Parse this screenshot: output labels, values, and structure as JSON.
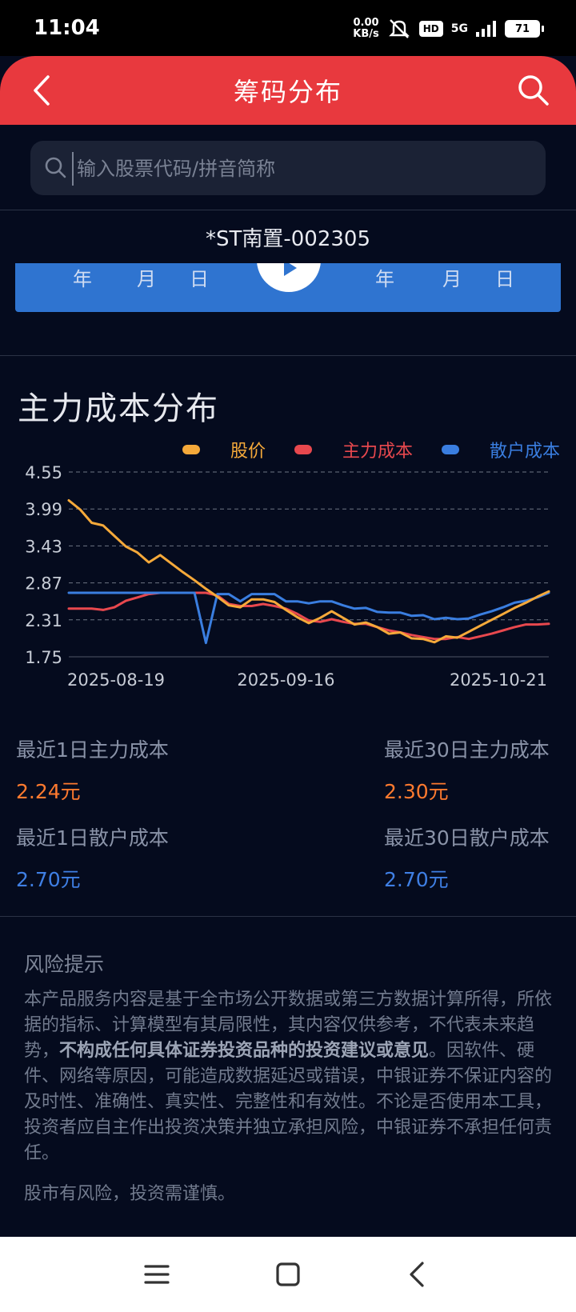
{
  "status": {
    "time": "11:04",
    "speed_value": "0.00",
    "speed_unit": "KB/s",
    "hd": "HD",
    "network": "5G",
    "battery": "71"
  },
  "header": {
    "title": "筹码分布"
  },
  "search": {
    "placeholder": "输入股票代码/拼音简称"
  },
  "stock": {
    "name": "*ST南置-002305"
  },
  "date_range": {
    "start_year": "年",
    "start_month": "月",
    "start_day": "日",
    "end_year": "年",
    "end_month": "月",
    "end_day": "日"
  },
  "section": {
    "title": "主力成本分布"
  },
  "legend": [
    {
      "label": "股价",
      "color": "#f5a93a"
    },
    {
      "label": "主力成本",
      "color": "#e8484e"
    },
    {
      "label": "散户成本",
      "color": "#3a7ee0"
    }
  ],
  "chart_data": {
    "type": "line",
    "y_ticks": [
      "4.55",
      "3.99",
      "3.43",
      "2.87",
      "2.31",
      "1.75"
    ],
    "ylim": [
      1.75,
      4.55
    ],
    "x_ticks": [
      {
        "label": "2025-08-19",
        "index": 0
      },
      {
        "label": "2025-09-16",
        "index": 19
      },
      {
        "label": "2025-10-21",
        "index": 44
      }
    ],
    "grid": true,
    "series": [
      {
        "name": "股价",
        "color": "#f5a93a",
        "values": [
          4.12,
          3.98,
          3.78,
          3.74,
          3.58,
          3.42,
          3.33,
          3.18,
          3.29,
          3.16,
          3.03,
          2.91,
          2.78,
          2.66,
          2.53,
          2.5,
          2.62,
          2.62,
          2.58,
          2.46,
          2.35,
          2.26,
          2.34,
          2.44,
          2.34,
          2.24,
          2.27,
          2.2,
          2.1,
          2.12,
          2.03,
          2.02,
          1.97,
          2.06,
          2.04,
          2.13,
          2.22,
          2.31,
          2.4,
          2.49,
          2.57,
          2.66,
          2.74
        ]
      },
      {
        "name": "主力成本",
        "color": "#e8484e",
        "values": [
          2.48,
          2.48,
          2.48,
          2.46,
          2.5,
          2.6,
          2.65,
          2.7,
          2.72,
          2.72,
          2.72,
          2.72,
          2.72,
          2.68,
          2.55,
          2.52,
          2.52,
          2.55,
          2.52,
          2.48,
          2.4,
          2.3,
          2.28,
          2.32,
          2.28,
          2.25,
          2.25,
          2.2,
          2.15,
          2.12,
          2.08,
          2.05,
          2.02,
          2.02,
          2.05,
          2.02,
          2.06,
          2.1,
          2.15,
          2.2,
          2.24,
          2.24,
          2.25
        ]
      },
      {
        "name": "散户成本",
        "color": "#3a7ee0",
        "values": [
          2.72,
          2.72,
          2.72,
          2.72,
          2.72,
          2.72,
          2.72,
          2.72,
          2.72,
          2.72,
          2.72,
          2.72,
          1.96,
          2.7,
          2.7,
          2.59,
          2.7,
          2.7,
          2.7,
          2.59,
          2.59,
          2.56,
          2.59,
          2.59,
          2.53,
          2.48,
          2.49,
          2.43,
          2.42,
          2.42,
          2.37,
          2.38,
          2.32,
          2.34,
          2.32,
          2.33,
          2.39,
          2.44,
          2.5,
          2.57,
          2.6,
          2.65,
          2.72
        ]
      }
    ]
  },
  "stats": {
    "main_1d_label": "最近1日主力成本",
    "main_1d_value": "2.24元",
    "main_30d_label": "最近30日主力成本",
    "main_30d_value": "2.30元",
    "retail_1d_label": "最近1日散户成本",
    "retail_1d_value": "2.70元",
    "retail_30d_label": "最近30日散户成本",
    "retail_30d_value": "2.70元",
    "main_color": "#ff7a2f",
    "retail_color": "#3f7fe4"
  },
  "risk": {
    "title": "风险提示",
    "text_part1": "本产品服务内容是基于全市场公开数据或第三方数据计算所得，所依据的指标、计算模型有其局限性，其内容仅供参考，不代表未来趋势，",
    "text_bold": "不构成任何具体证券投资品种的投资建议或意见",
    "text_part2": "。因软件、硬件、网络等原因，可能造成数据延迟或错误，中银证券不保证内容的及时性、准确性、真实性、完整性和有效性。不论是否使用本工具，投资者应自主作出投资决策并独立承担风险，中银证券不承担任何责任。",
    "footer": "股市有风险，投资需谨慎。"
  },
  "nav": {
    "menu_icon": "menu-icon",
    "home_icon": "home-icon",
    "back_icon": "back-icon"
  }
}
